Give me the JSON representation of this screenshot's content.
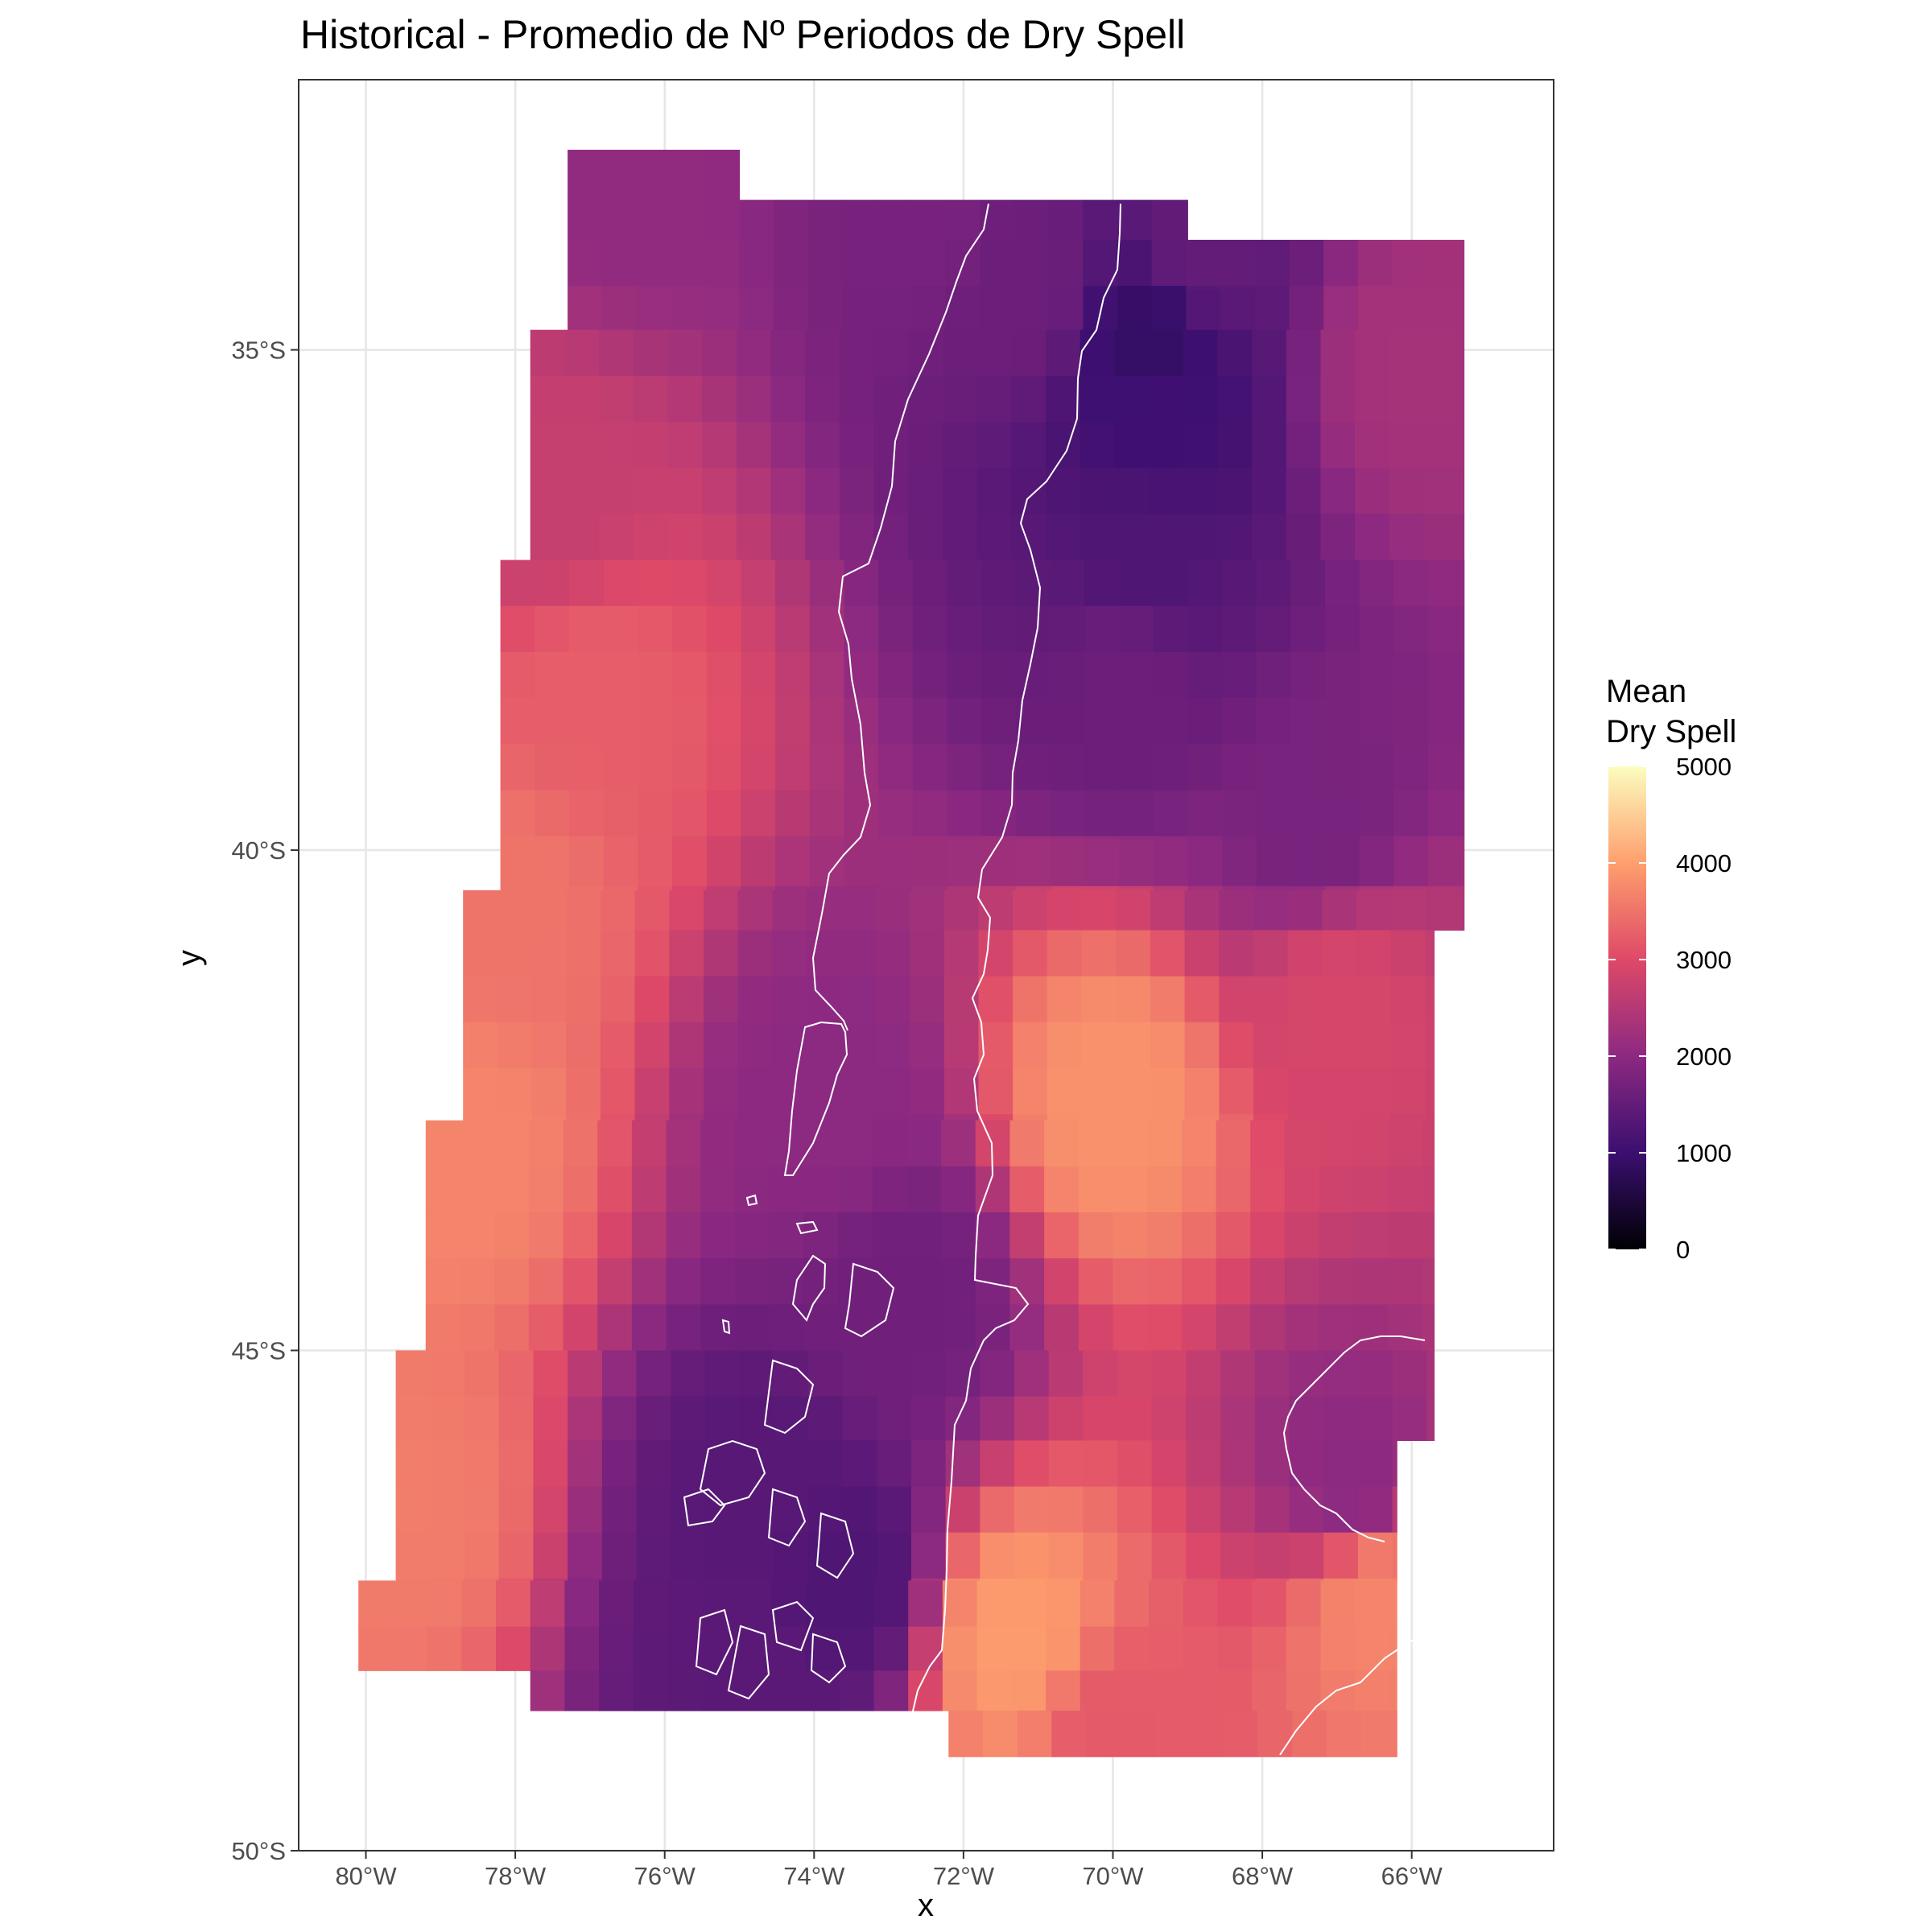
{
  "colors": {
    "background": "#ffffff",
    "panel_border": "#333333",
    "grid": "#e6e6e6",
    "coastline": "#ffffff",
    "palette_magma": [
      "#000004",
      "#3b0f70",
      "#8c2981",
      "#de4968",
      "#fe9f6d",
      "#fcfdbf"
    ]
  },
  "chart_data": {
    "type": "heatmap",
    "title": "Historical - Promedio de Nº Periodos de Dry Spell",
    "xlabel": "x",
    "ylabel": "y",
    "x_ticks": [
      {
        "value": -80,
        "label": "80°W"
      },
      {
        "value": -78,
        "label": "78°W"
      },
      {
        "value": -76,
        "label": "76°W"
      },
      {
        "value": -74,
        "label": "74°W"
      },
      {
        "value": -72,
        "label": "72°W"
      },
      {
        "value": -70,
        "label": "70°W"
      },
      {
        "value": -68,
        "label": "68°W"
      },
      {
        "value": -66,
        "label": "66°W"
      }
    ],
    "y_ticks": [
      {
        "value": -35,
        "label": "35°S"
      },
      {
        "value": -40,
        "label": "40°S"
      },
      {
        "value": -45,
        "label": "45°S"
      },
      {
        "value": -50,
        "label": "50°S"
      }
    ],
    "xlim": [
      -80.9,
      -64.1
    ],
    "ylim": [
      -50.0,
      -32.3
    ],
    "grid": true,
    "cell_size_deg": [
      0.46,
      0.46
    ],
    "legend": {
      "title_line1": "Mean",
      "title_line2": "Dry Spell",
      "placement": "right",
      "min": 0,
      "max": 5000,
      "ticks": [
        {
          "value": 0,
          "label": "0"
        },
        {
          "value": 1000,
          "label": "1000"
        },
        {
          "value": 2000,
          "label": "2000"
        },
        {
          "value": 3000,
          "label": "3000"
        },
        {
          "value": 4000,
          "label": "4000"
        },
        {
          "value": 5000,
          "label": "5000"
        }
      ]
    },
    "grid_rows": [
      {
        "lat_top": -33.0,
        "lon_min": -77.3,
        "lon_max": -75.0
      },
      {
        "lat_top": -33.5,
        "lon_min": -77.3,
        "lon_max": -69.0
      },
      {
        "lat_top": -33.9,
        "lon_min": -77.3,
        "lon_max": -65.3
      },
      {
        "lat_top": -34.4,
        "lon_min": -77.3,
        "lon_max": -65.3
      },
      {
        "lat_top": -34.8,
        "lon_min": -77.8,
        "lon_max": -65.3
      },
      {
        "lat_top": -37.1,
        "lon_min": -78.2,
        "lon_max": -65.3
      },
      {
        "lat_top": -39.9,
        "lon_min": -78.2,
        "lon_max": -65.3
      },
      {
        "lat_top": -40.4,
        "lon_min": -78.7,
        "lon_max": -65.3
      },
      {
        "lat_top": -40.8,
        "lon_min": -78.7,
        "lon_max": -65.7
      },
      {
        "lat_top": -42.7,
        "lon_min": -79.2,
        "lon_max": -65.7
      },
      {
        "lat_top": -45.0,
        "lon_min": -79.6,
        "lon_max": -65.7
      },
      {
        "lat_top": -45.9,
        "lon_min": -79.6,
        "lon_max": -66.2
      },
      {
        "lat_top": -47.3,
        "lon_min": -80.1,
        "lon_max": -66.2
      },
      {
        "lat_top": -48.2,
        "lon_min": -77.8,
        "lon_max": -66.2
      }
    ],
    "grid_rows_partial": [
      {
        "lat_top": -48.6,
        "lon_min": -72.2,
        "lon_max": -66.2
      }
    ],
    "value_field_anchors": [
      {
        "lat": -33.2,
        "lon": -76.5,
        "value": 2050
      },
      {
        "lat": -33.6,
        "lon": -72.5,
        "value": 1750
      },
      {
        "lat": -34.4,
        "lon": -71.2,
        "value": 1600
      },
      {
        "lat": -34.0,
        "lon": -68.8,
        "value": 1500
      },
      {
        "lat": -35.0,
        "lon": -69.5,
        "value": 900
      },
      {
        "lat": -35.5,
        "lon": -69.4,
        "value": 1050
      },
      {
        "lat": -37.2,
        "lon": -69.6,
        "value": 1250
      },
      {
        "lat": -38.2,
        "lon": -69.8,
        "value": 1600
      },
      {
        "lat": -35.2,
        "lon": -66.0,
        "value": 2300
      },
      {
        "lat": -39.8,
        "lon": -67.3,
        "value": 1750
      },
      {
        "lat": -36.5,
        "lon": -77.5,
        "value": 2700
      },
      {
        "lat": -38.5,
        "lon": -77.0,
        "value": 3250
      },
      {
        "lat": -40.5,
        "lon": -78.2,
        "value": 3500
      },
      {
        "lat": -43.0,
        "lon": -78.8,
        "value": 3700
      },
      {
        "lat": -46.5,
        "lon": -79.5,
        "value": 3600
      },
      {
        "lat": -42.5,
        "lon": -73.8,
        "value": 2000
      },
      {
        "lat": -44.5,
        "lon": -72.8,
        "value": 1650
      },
      {
        "lat": -46.5,
        "lon": -74.7,
        "value": 1350
      },
      {
        "lat": -47.3,
        "lon": -73.6,
        "value": 1250
      },
      {
        "lat": -48.1,
        "lon": -75.0,
        "value": 1400
      },
      {
        "lat": -47.9,
        "lon": -71.3,
        "value": 3950
      },
      {
        "lat": -42.5,
        "lon": -70.0,
        "value": 3850
      },
      {
        "lat": -46.3,
        "lon": -66.8,
        "value": 2000
      },
      {
        "lat": -47.5,
        "lon": -66.5,
        "value": 3700
      },
      {
        "lat": -48.9,
        "lon": -70.0,
        "value": 3200
      },
      {
        "lat": -41.5,
        "lon": -67.0,
        "value": 2900
      }
    ]
  }
}
